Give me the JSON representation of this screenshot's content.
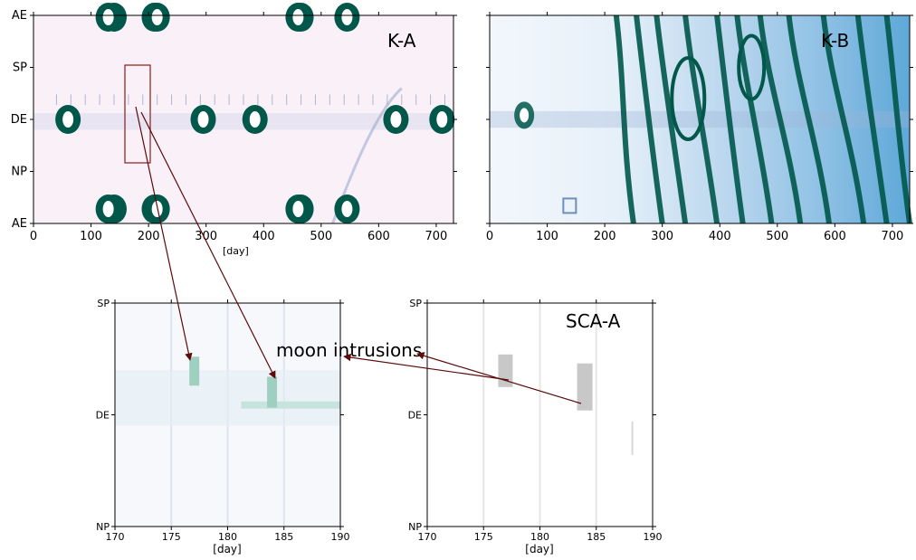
{
  "chart_data": [
    {
      "id": "ka",
      "type": "heatmap",
      "title": "K-A",
      "x_ticks": [
        0,
        100,
        200,
        300,
        400,
        500,
        600,
        700
      ],
      "xlim": [
        0,
        730
      ],
      "y_ticks": [
        "AE",
        "SP",
        "DE",
        "NP",
        "AE"
      ],
      "colors": {
        "background": "#f9eef6",
        "hot": "#00574a",
        "mid": "#3d9fb8"
      },
      "zoom_box": {
        "x_range": [
          170,
          190
        ],
        "y_range": [
          "SP",
          "NP"
        ]
      },
      "hot_spots": [
        {
          "x": 60,
          "y": "DE"
        },
        {
          "x": 140,
          "y": "AE"
        },
        {
          "x": 210,
          "y": "AE"
        },
        {
          "x": 295,
          "y": "DE"
        },
        {
          "x": 385,
          "y": "DE"
        },
        {
          "x": 465,
          "y": "AE"
        },
        {
          "x": 545,
          "y": "AE"
        },
        {
          "x": 630,
          "y": "DE"
        },
        {
          "x": 710,
          "y": "DE"
        },
        {
          "x": 130,
          "y": "AE"
        },
        {
          "x": 215,
          "y": "AE"
        },
        {
          "x": 460,
          "y": "AE"
        }
      ]
    },
    {
      "id": "kb",
      "type": "heatmap",
      "title": "K-B",
      "x_ticks": [
        0,
        100,
        200,
        300,
        400,
        500,
        600,
        700
      ],
      "xlim": [
        0,
        730
      ],
      "y_ticks": [
        "AE",
        "SP",
        "DE",
        "NP",
        "AE"
      ],
      "colors": {
        "background": "#eaf2fa",
        "hot": "#00574a",
        "mid": "#4a9cd0"
      }
    },
    {
      "id": "zoom_left",
      "type": "heatmap",
      "x_ticks": [
        170,
        175,
        180,
        185,
        190
      ],
      "xlim": [
        170,
        190
      ],
      "xlabel": "[day]",
      "y_ticks": [
        "SP",
        "DE",
        "NP"
      ],
      "colors": {
        "background": "#f6f8fc",
        "patch": "#9ecfc0"
      }
    },
    {
      "id": "zoom_right",
      "type": "heatmap",
      "title": "SCA-A",
      "x_ticks": [
        170,
        175,
        180,
        185,
        190
      ],
      "xlim": [
        170,
        190
      ],
      "xlabel": "[day]",
      "y_ticks": [
        "SP",
        "DE",
        "NP"
      ],
      "colors": {
        "background": "#ffffff",
        "patch": "#c8c8c8"
      }
    }
  ],
  "annotation": {
    "label": "moon intrusions",
    "arrow_color": "#5c0a0a"
  },
  "cutoff_label": "[day]"
}
